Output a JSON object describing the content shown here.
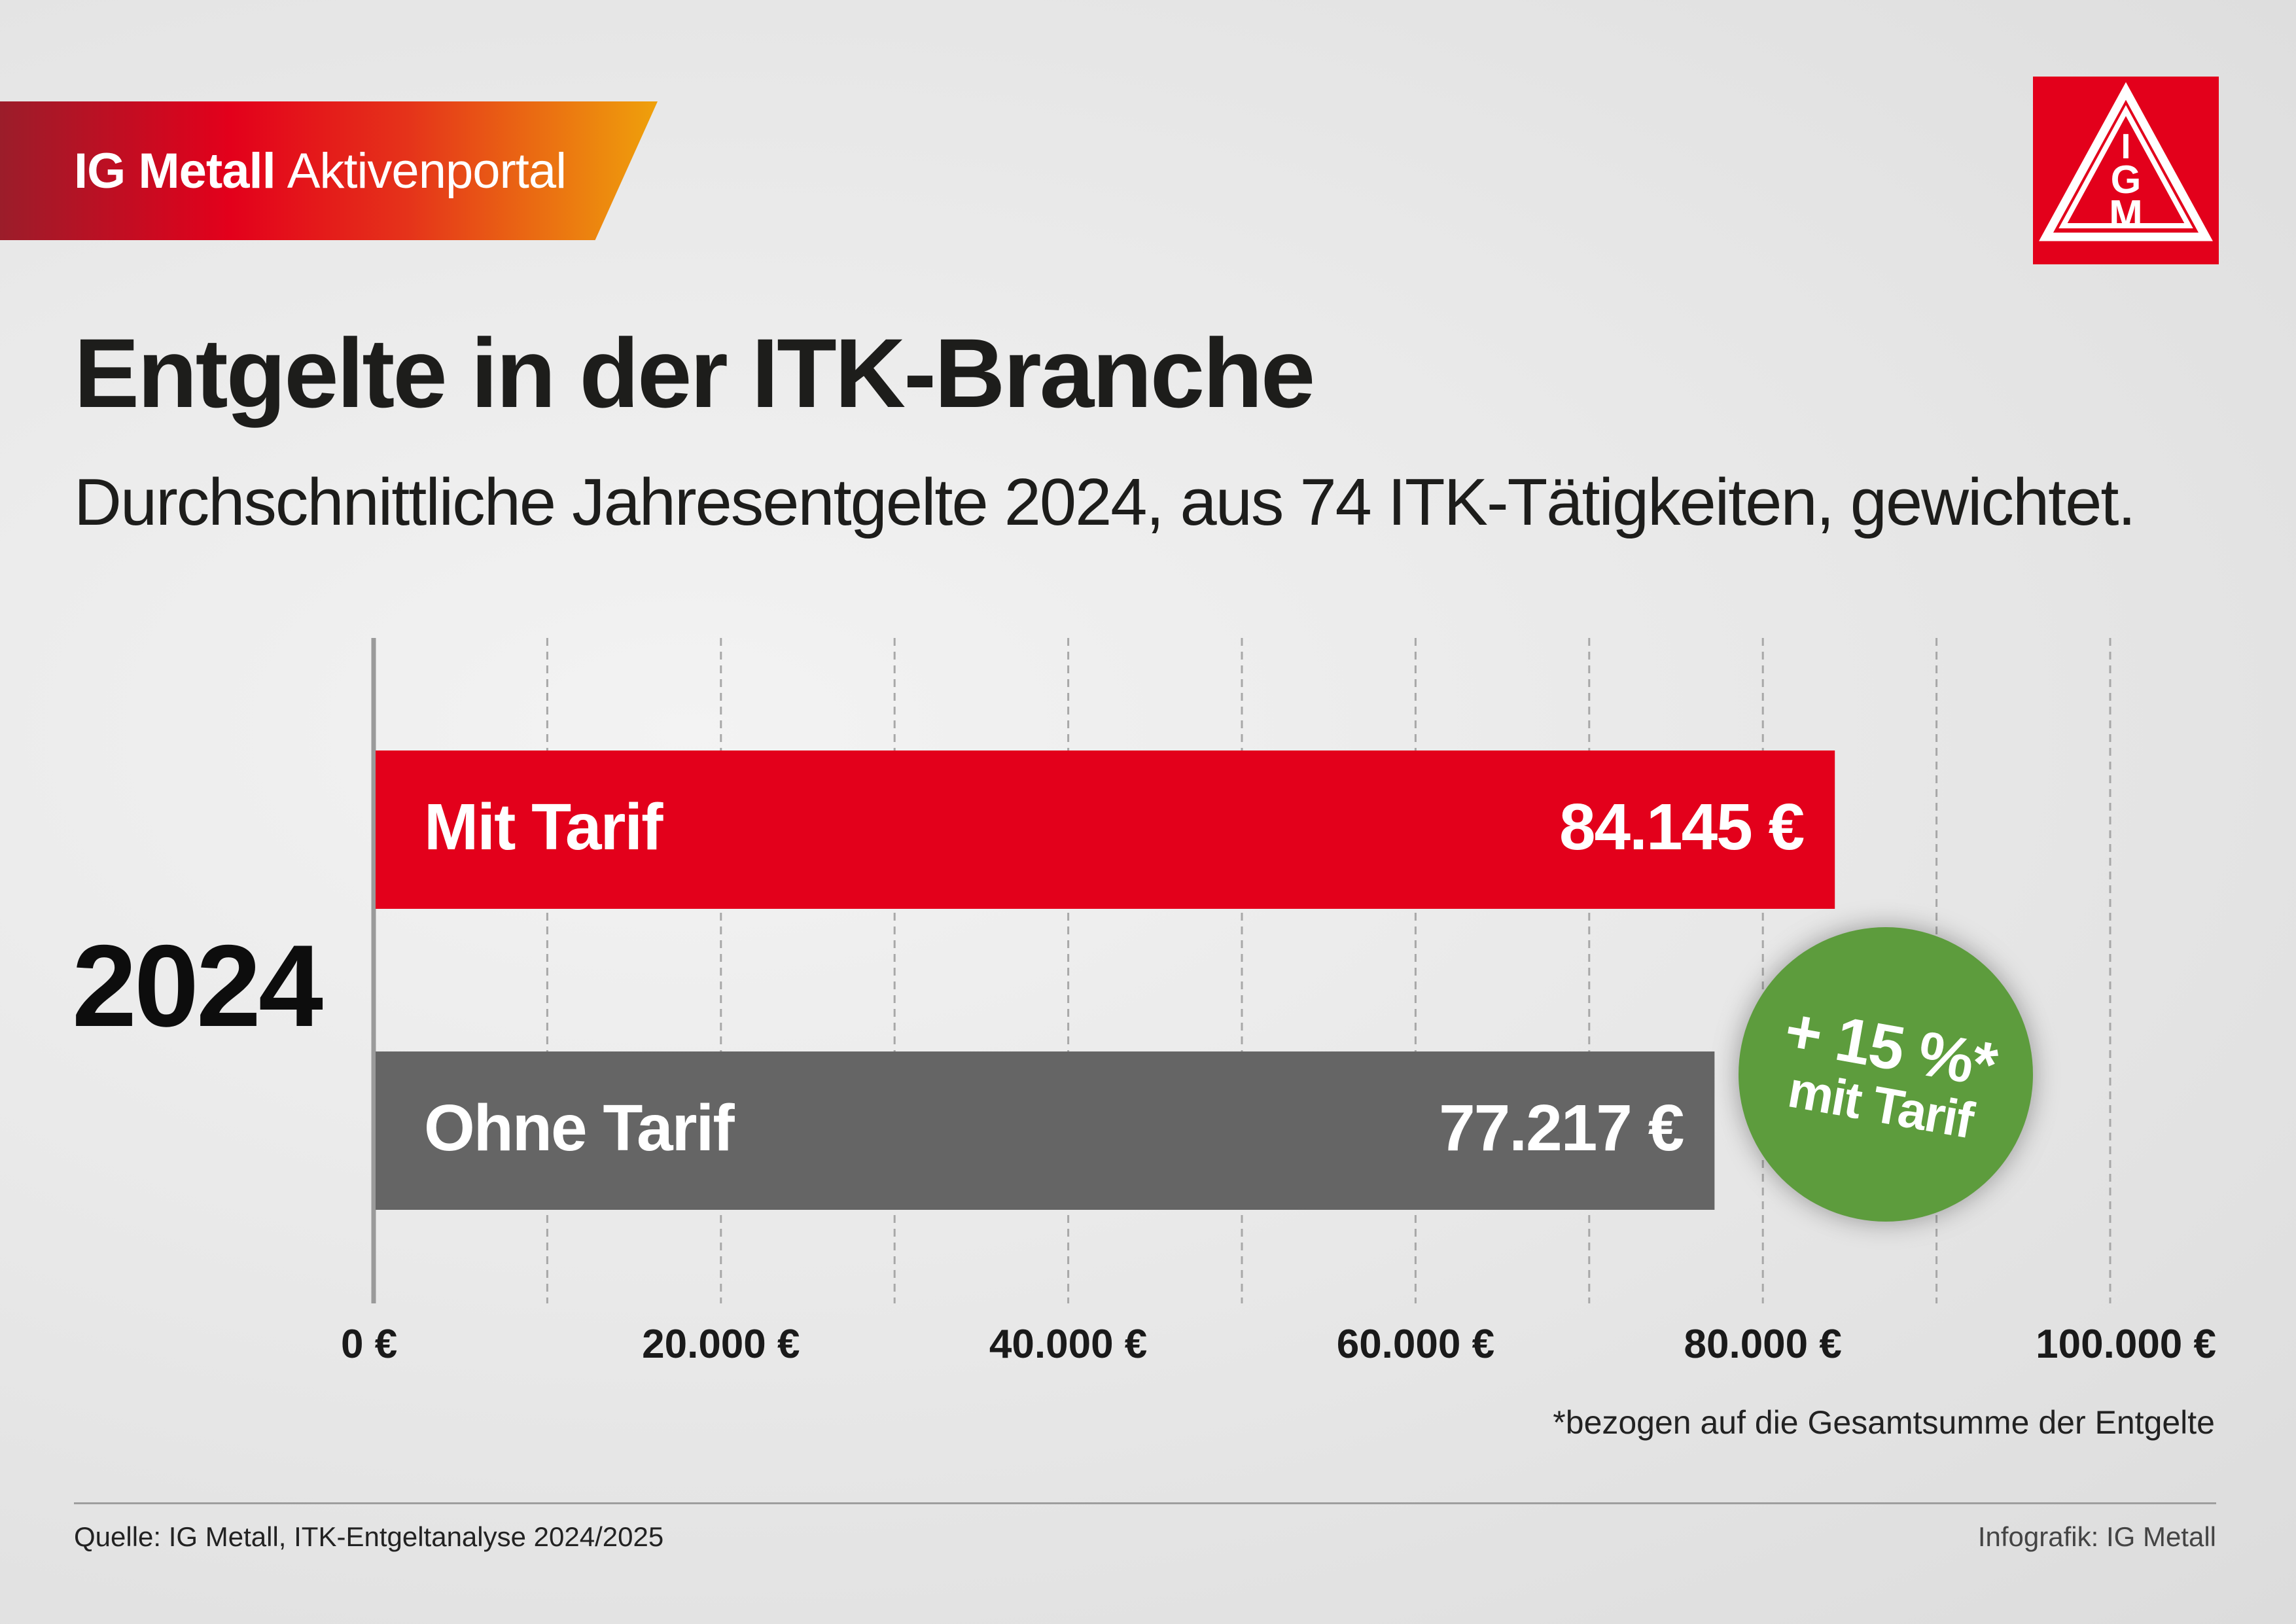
{
  "header": {
    "brand_bold": "IG Metall",
    "brand_light": "Aktivenportal",
    "logo_letters": [
      "I",
      "G",
      "M"
    ]
  },
  "title": "Entgelte in der ITK-Branche",
  "subtitle": "Durchschnittliche Jahresentgelte 2024, aus 74 ITK-Tätigkeiten, gewichtet.",
  "chart_data": {
    "type": "bar",
    "orientation": "horizontal",
    "group_label": "2024",
    "categories": [
      "Mit Tarif",
      "Ohne Tarif"
    ],
    "values": [
      84145,
      77217
    ],
    "value_labels": [
      "84.145 €",
      "77.217 €"
    ],
    "colors": [
      "#e3001b",
      "#656565"
    ],
    "xlim": [
      0,
      100000
    ],
    "x_ticks": [
      0,
      20000,
      40000,
      60000,
      80000,
      100000
    ],
    "x_tick_labels": [
      "0 €",
      "20.000 €",
      "40.000 €",
      "60.000 €",
      "80.000 €",
      "100.000 €"
    ],
    "grid": "vertical dashed",
    "annotation": {
      "line1": "+ 15 %*",
      "line2": "mit Tarif",
      "color": "#5d9c3d"
    }
  },
  "footnote": "*bezogen auf die Gesamtsumme der Entgelte",
  "source": "Quelle: IG Metall, ITK-Entgeltanalyse 2024/2025",
  "credit": "Infografik: IG Metall"
}
